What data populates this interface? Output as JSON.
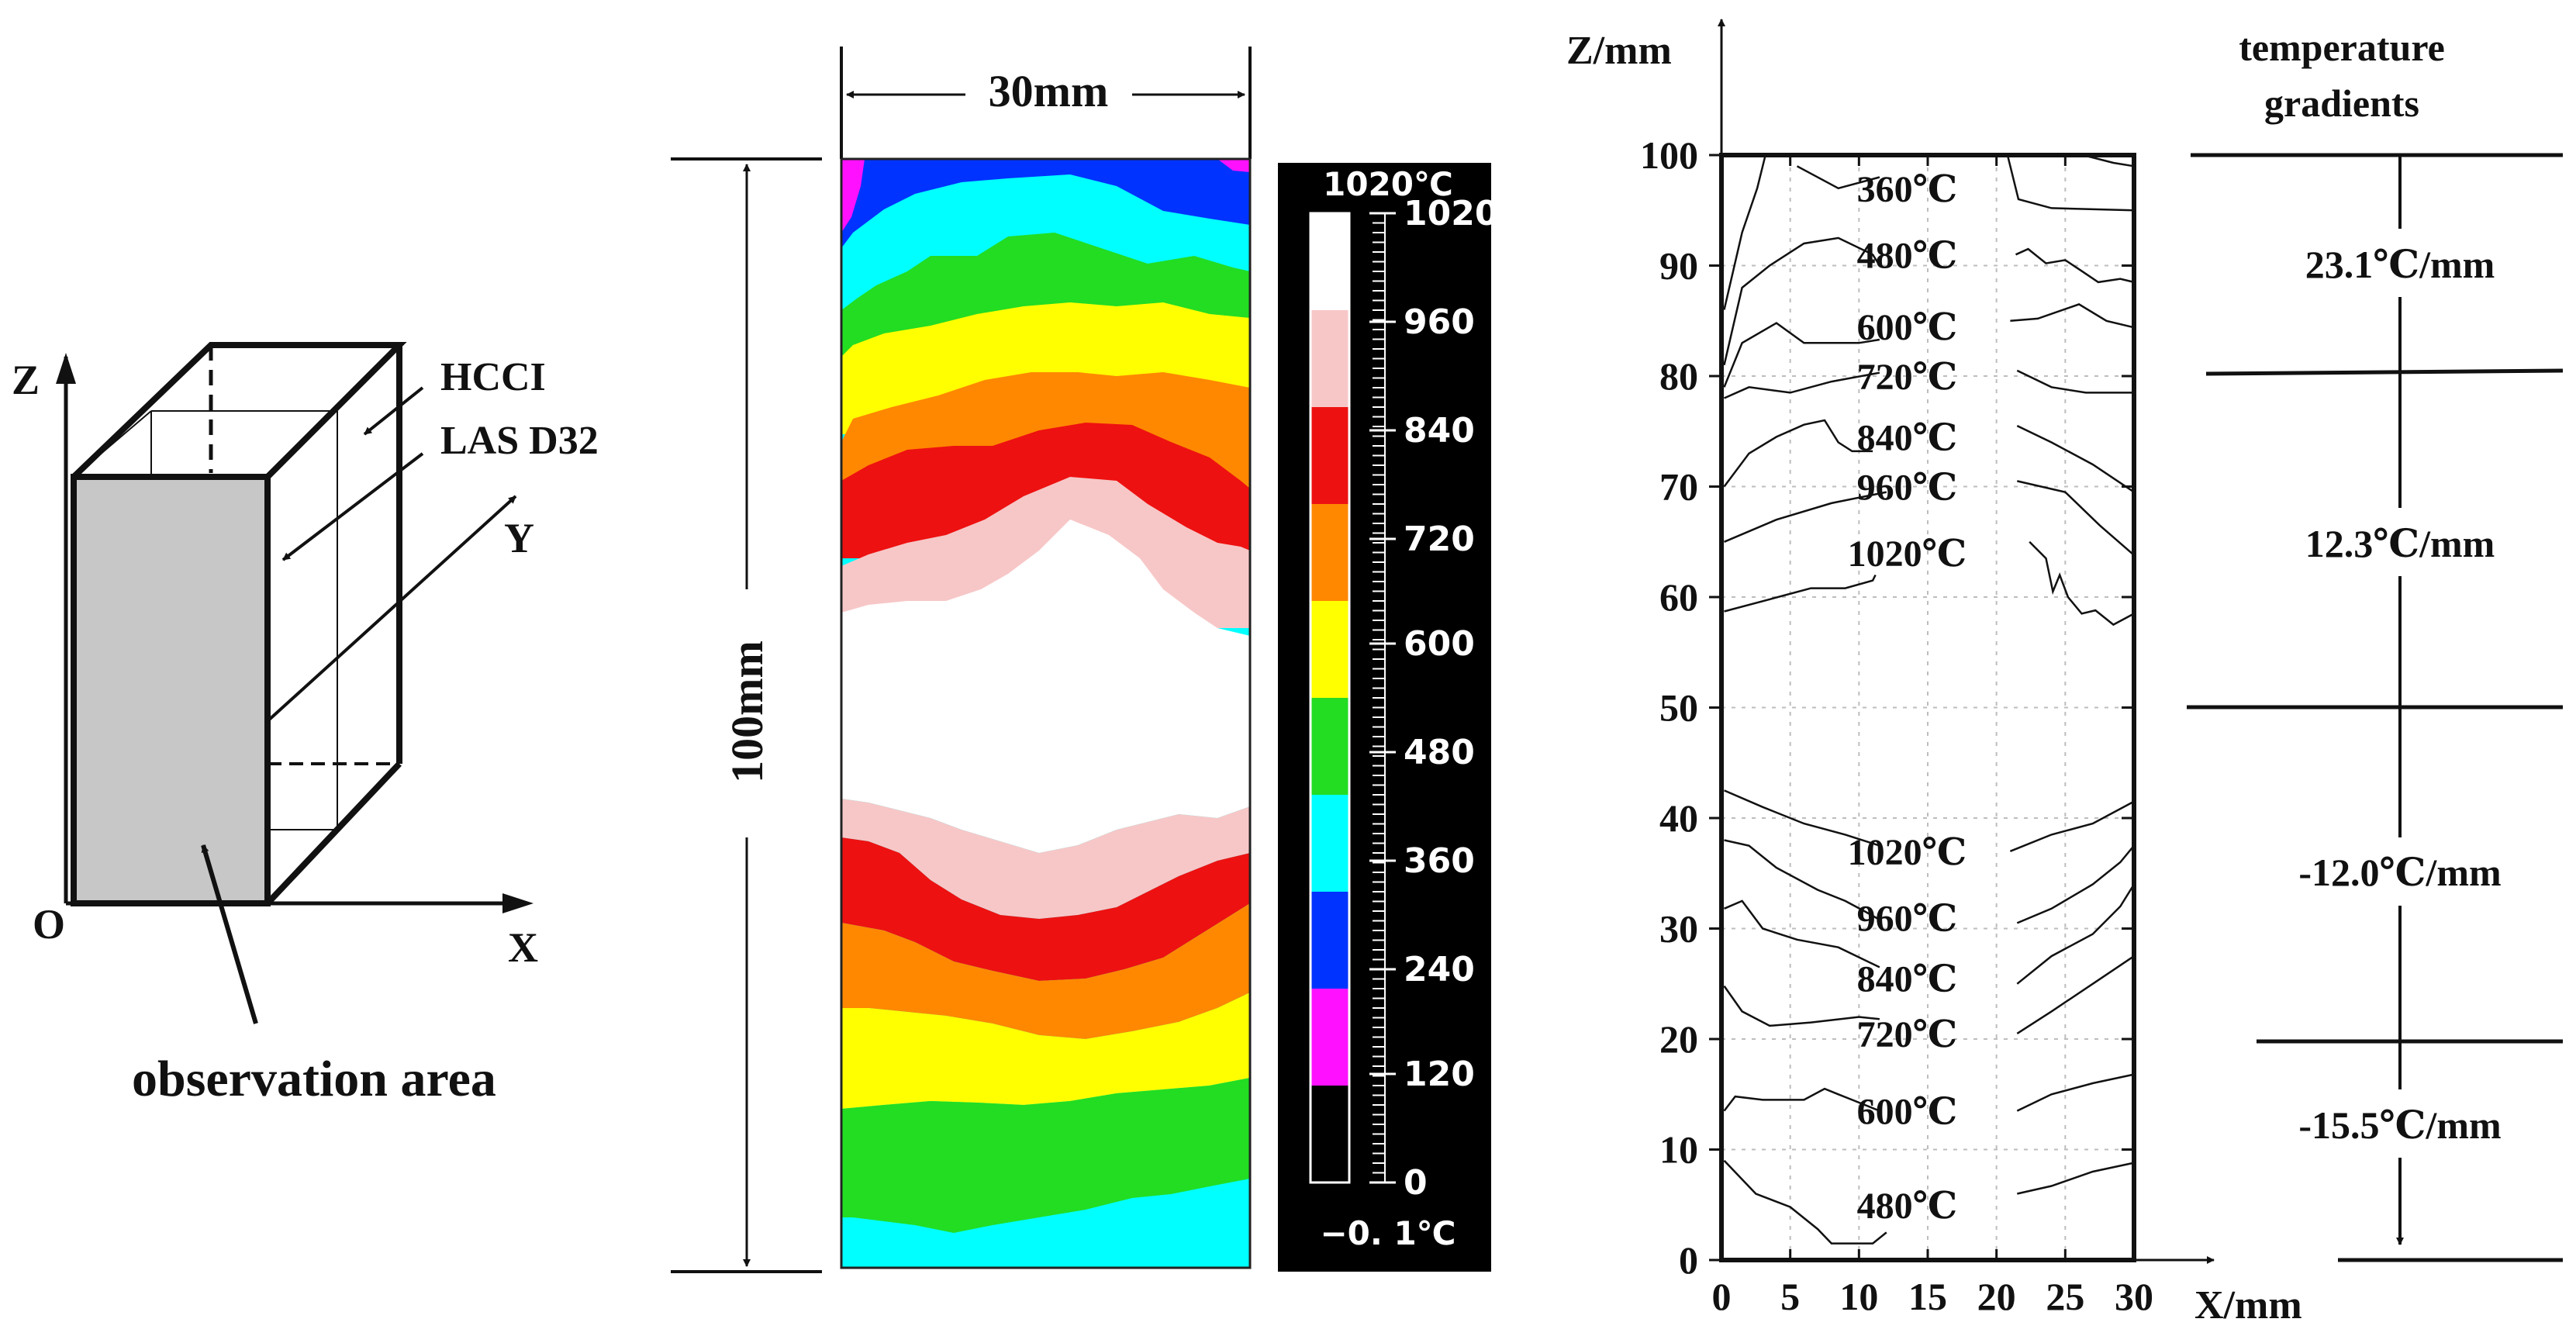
{
  "panel_a": {
    "axis_z": "Z",
    "axis_y": "Y",
    "axis_x": "X",
    "origin": "O",
    "label_hcci": "HCCI",
    "label_las": "LAS D32",
    "label_observation": "observation area"
  },
  "panel_b": {
    "width_label": "30mm",
    "height_label": "100mm",
    "colorbar_max_label": "1020℃",
    "colorbar_min_label": "−0. 1℃",
    "colorbar_ticks": [
      "1020",
      "960",
      "840",
      "720",
      "600",
      "480",
      "360",
      "240",
      "120",
      "0"
    ],
    "colorbar_colors": [
      "#ffffff",
      "#f7c7c7",
      "#ee1111",
      "#ff8800",
      "#ffff00",
      "#22dd22",
      "#00ffff",
      "#0033ff",
      "#ff11ff",
      "#000000"
    ]
  },
  "chart_data": {
    "type": "line",
    "xlabel": "X/mm",
    "ylabel": "Z/mm",
    "xlim": [
      0,
      30
    ],
    "ylim": [
      0,
      100
    ],
    "grid": true,
    "x_ticks": [
      "0",
      "5",
      "10",
      "15",
      "20",
      "25",
      "30"
    ],
    "y_ticks": [
      "0",
      "10",
      "20",
      "30",
      "40",
      "50",
      "60",
      "70",
      "80",
      "90",
      "100"
    ],
    "isotherm_labels": [
      {
        "text": "360℃",
        "x": 13.5,
        "z": 97
      },
      {
        "text": "480℃",
        "x": 13.5,
        "z": 91
      },
      {
        "text": "600℃",
        "x": 13.5,
        "z": 84.5
      },
      {
        "text": "720℃",
        "x": 13.5,
        "z": 80
      },
      {
        "text": "840℃",
        "x": 13.5,
        "z": 74.5
      },
      {
        "text": "960℃",
        "x": 13.5,
        "z": 70
      },
      {
        "text": "1020℃",
        "x": 13.5,
        "z": 64
      },
      {
        "text": "1020℃",
        "x": 13.5,
        "z": 37
      },
      {
        "text": "960℃",
        "x": 13.5,
        "z": 31
      },
      {
        "text": "840℃",
        "x": 13.5,
        "z": 25.5
      },
      {
        "text": "720℃",
        "x": 13.5,
        "z": 20.5
      },
      {
        "text": "600℃",
        "x": 13.5,
        "z": 13.5
      },
      {
        "text": "480℃",
        "x": 13.5,
        "z": 5
      }
    ],
    "isotherms": [
      {
        "name": "360℃ left",
        "x": [
          0.2,
          1.5,
          2.6,
          3.2
        ],
        "z": [
          86,
          93,
          97,
          100
        ]
      },
      {
        "name": "360℃ center",
        "x": [
          5.5,
          8.5,
          11.5
        ],
        "z": [
          99,
          97,
          98
        ]
      },
      {
        "name": "360℃ right",
        "x": [
          20.8,
          21.6,
          24,
          30
        ],
        "z": [
          100,
          96,
          95.2,
          95
        ]
      },
      {
        "name": "360℃ right top",
        "x": [
          26.3,
          28.5,
          30
        ],
        "z": [
          100,
          99.3,
          99
        ]
      },
      {
        "name": "480℃ left",
        "x": [
          0.2,
          1.5,
          3.5,
          6,
          8.5,
          11,
          11.5
        ],
        "z": [
          81,
          88,
          90,
          92,
          92.5,
          91,
          90
        ]
      },
      {
        "name": "480℃ right",
        "x": [
          21.4,
          22.3,
          23.6,
          25,
          26.2,
          27.4,
          29,
          30
        ],
        "z": [
          91,
          91.5,
          90.2,
          90.5,
          89.5,
          88.5,
          88.8,
          88.5
        ]
      },
      {
        "name": "600℃ left",
        "x": [
          0.2,
          1.5,
          4,
          6,
          10,
          11.5
        ],
        "z": [
          79,
          83,
          84.8,
          83,
          83,
          83.3
        ]
      },
      {
        "name": "600℃ right",
        "x": [
          21,
          23,
          26,
          28,
          30
        ],
        "z": [
          85,
          85.2,
          86.5,
          85,
          84.4
        ]
      },
      {
        "name": "720℃ left",
        "x": [
          0.2,
          2,
          5,
          8,
          11.5
        ],
        "z": [
          78,
          79,
          78.5,
          79.5,
          80.3
        ]
      },
      {
        "name": "720℃ right",
        "x": [
          21.5,
          24,
          26.5,
          30
        ],
        "z": [
          80.5,
          79,
          78.5,
          78.5
        ]
      },
      {
        "name": "840℃ left",
        "x": [
          0.2,
          2,
          4,
          6,
          7.5,
          8.5,
          9.5,
          11
        ],
        "z": [
          70,
          73,
          74.5,
          75.6,
          76,
          74,
          73.2,
          73.2
        ]
      },
      {
        "name": "840℃ right",
        "x": [
          21.5,
          24,
          27,
          30
        ],
        "z": [
          75.5,
          74,
          72,
          69.5
        ]
      },
      {
        "name": "960℃ left",
        "x": [
          0.2,
          4,
          8,
          12
        ],
        "z": [
          65,
          67,
          68.5,
          69.5
        ]
      },
      {
        "name": "960℃ right",
        "x": [
          21.5,
          25,
          27.5,
          30
        ],
        "z": [
          70.5,
          69.5,
          66.5,
          63.8
        ]
      },
      {
        "name": "1020℃ left",
        "x": [
          0.2,
          3.5,
          6.5,
          9,
          11,
          11.2
        ],
        "z": [
          58.7,
          59.8,
          60.8,
          60.8,
          61.5,
          62
        ]
      },
      {
        "name": "1020℃ right",
        "x": [
          22.4,
          23.6,
          24.1,
          24.6,
          25.2,
          26.2,
          27.2,
          28.5,
          30
        ],
        "z": [
          65,
          63.5,
          60.5,
          62,
          60,
          58.5,
          58.8,
          57.5,
          58.5
        ]
      },
      {
        "name": "1020℃ lower left",
        "x": [
          0.2,
          3,
          6,
          9,
          11.5
        ],
        "z": [
          42.5,
          41,
          39.5,
          38.5,
          37.5
        ]
      },
      {
        "name": "1020℃ lower right",
        "x": [
          21,
          24,
          27,
          30
        ],
        "z": [
          37,
          38.5,
          39.5,
          41.5
        ]
      },
      {
        "name": "960℃ lower left",
        "x": [
          0.2,
          2,
          4,
          7,
          9,
          10.5,
          11.5
        ],
        "z": [
          38,
          37.5,
          35.5,
          33.5,
          32.5,
          31.5,
          30.8
        ]
      },
      {
        "name": "960℃ lower right",
        "x": [
          21.5,
          24,
          27,
          29,
          30
        ],
        "z": [
          30.5,
          31.8,
          34,
          36,
          37.5
        ]
      },
      {
        "name": "840℃ lower left",
        "x": [
          0.2,
          1.5,
          3,
          5.5,
          8.5,
          11.5
        ],
        "z": [
          31.8,
          32.5,
          30,
          29,
          28.3,
          26.5
        ]
      },
      {
        "name": "840℃ lower right",
        "x": [
          21.5,
          24,
          27,
          29,
          30
        ],
        "z": [
          25,
          27.5,
          29.5,
          32,
          34
        ]
      },
      {
        "name": "720℃ lower left",
        "x": [
          0.2,
          1.5,
          3.5,
          6.5,
          10,
          11.5
        ],
        "z": [
          24.8,
          22.5,
          21.2,
          21.5,
          22,
          21.8
        ]
      },
      {
        "name": "720℃ lower right",
        "x": [
          21.5,
          24,
          27,
          30
        ],
        "z": [
          20.5,
          22.5,
          25,
          27.5
        ]
      },
      {
        "name": "600℃ lower left",
        "x": [
          0.2,
          1,
          3,
          6,
          7.5,
          8.5,
          9.5,
          11.5
        ],
        "z": [
          13.5,
          14.8,
          14.5,
          14.5,
          15.5,
          15,
          14.5,
          13.5
        ]
      },
      {
        "name": "600℃ lower right",
        "x": [
          21.5,
          24,
          27,
          30
        ],
        "z": [
          13.5,
          15,
          16,
          16.8
        ]
      },
      {
        "name": "480℃ lower left",
        "x": [
          0.2,
          2.5,
          5,
          7,
          8,
          11,
          12
        ],
        "z": [
          9,
          6,
          4.8,
          2.8,
          1.5,
          1.5,
          2.5
        ]
      },
      {
        "name": "480℃ lower right",
        "x": [
          21.5,
          24,
          27,
          30
        ],
        "z": [
          6,
          6.7,
          8,
          8.8
        ]
      }
    ]
  },
  "gradients": {
    "title": "temperature gradients",
    "values": [
      "23.1℃/mm",
      "12.3℃/mm",
      "-12.0℃/mm",
      "-15.5℃/mm"
    ]
  }
}
